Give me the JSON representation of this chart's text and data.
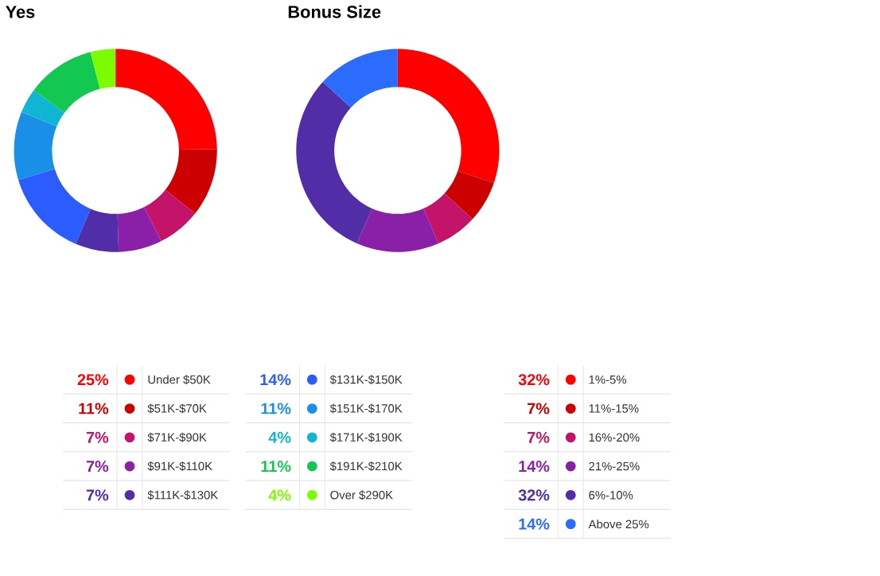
{
  "chart_data": [
    {
      "type": "donut",
      "title": "Yes",
      "legend": "bottom",
      "categories": [
        "Under $50K",
        "$51K-$70K",
        "$71K-$90K",
        "$91K-$110K",
        "$111K-$130K",
        "$131K-$150K",
        "$151K-$170K",
        "$171K-$190K",
        "$191K-$210K",
        "Over $290K"
      ],
      "values": [
        25,
        11,
        7,
        7,
        7,
        14,
        11,
        4,
        11,
        4
      ],
      "value_labels": [
        "25%",
        "11%",
        "7%",
        "7%",
        "7%",
        "14%",
        "11%",
        "4%",
        "11%",
        "4%"
      ],
      "colors": [
        "#ff0000",
        "#cc0000",
        "#c4146a",
        "#8a1fa8",
        "#512da8",
        "#2b5cff",
        "#1a8fe8",
        "#11b5d4",
        "#12c850",
        "#7cfc00"
      ]
    },
    {
      "type": "donut",
      "title": "Bonus Size",
      "legend": "bottom",
      "categories": [
        "1%-5%",
        "11%-15%",
        "16%-20%",
        "21%-25%",
        "6%-10%",
        "Above 25%"
      ],
      "values": [
        32,
        7,
        7,
        14,
        32,
        14
      ],
      "value_labels": [
        "32%",
        "7%",
        "7%",
        "14%",
        "32%",
        "14%"
      ],
      "colors": [
        "#ff0000",
        "#cc0000",
        "#c4146a",
        "#8a1fa8",
        "#512da8",
        "#2b6cff"
      ]
    }
  ]
}
